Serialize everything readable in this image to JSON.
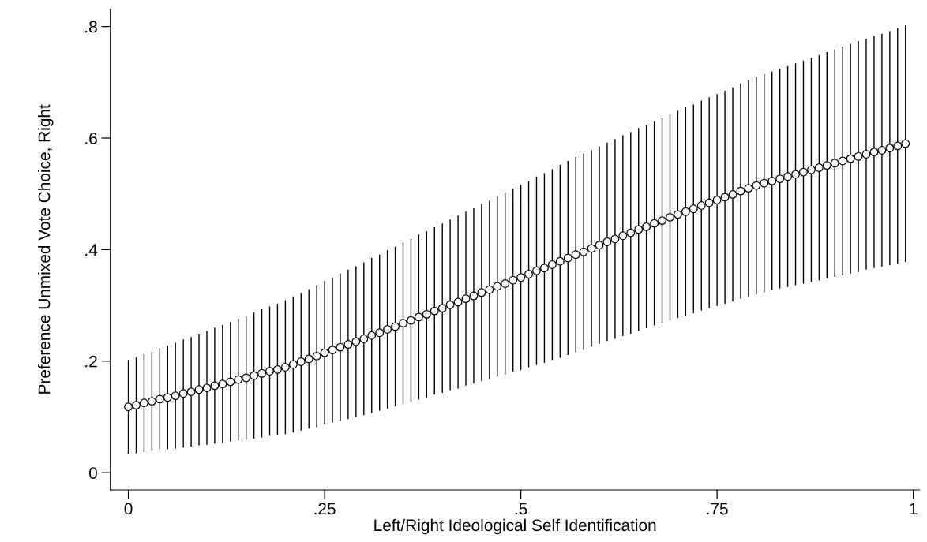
{
  "chart_data": {
    "type": "scatter",
    "xlabel": "Left/Right Ideological Self Identification",
    "ylabel": "Preference Unmixed Vote Choice, Right",
    "marker": "circle",
    "xlim": [
      -0.023,
      1.008
    ],
    "ylim": [
      -0.031,
      0.831
    ],
    "xticks": [
      0,
      {
        "value": 0.25,
        "label": ".25"
      },
      {
        "value": 0.5,
        "label": ".5"
      },
      {
        "value": 0.75,
        "label": ".75"
      },
      1
    ],
    "yticks": [
      0,
      {
        "value": 0.2,
        "label": ".2"
      },
      {
        "value": 0.4,
        "label": ".4"
      },
      {
        "value": 0.6,
        "label": ".6"
      },
      {
        "value": 0.8,
        "label": ".8"
      }
    ],
    "x": [
      0,
      0.01,
      0.02,
      0.03,
      0.04,
      0.05,
      0.06,
      0.07,
      0.08,
      0.09,
      0.1,
      0.11,
      0.12,
      0.13,
      0.14,
      0.15,
      0.16,
      0.17,
      0.18,
      0.19,
      0.2,
      0.21,
      0.22,
      0.23,
      0.24,
      0.25,
      0.26,
      0.27,
      0.28,
      0.29,
      0.3,
      0.31,
      0.32,
      0.33,
      0.34,
      0.35,
      0.36,
      0.37,
      0.38,
      0.39,
      0.4,
      0.41,
      0.42,
      0.43,
      0.44,
      0.45,
      0.46,
      0.47,
      0.48,
      0.49,
      0.5,
      0.51,
      0.52,
      0.53,
      0.54,
      0.55,
      0.56,
      0.57,
      0.58,
      0.59,
      0.6,
      0.61,
      0.62,
      0.63,
      0.64,
      0.65,
      0.66,
      0.67,
      0.68,
      0.69,
      0.7,
      0.71,
      0.72,
      0.73,
      0.74,
      0.75,
      0.76,
      0.77,
      0.78,
      0.79,
      0.8,
      0.81,
      0.82,
      0.83,
      0.84,
      0.85,
      0.86,
      0.87,
      0.88,
      0.89,
      0.9,
      0.91,
      0.92,
      0.93,
      0.94,
      0.95,
      0.96,
      0.97,
      0.98,
      0.99
    ],
    "series": [
      {
        "color": "#000000",
        "values": [
          0.118,
          0.121,
          0.125,
          0.128,
          0.132,
          0.135,
          0.138,
          0.142,
          0.145,
          0.149,
          0.152,
          0.156,
          0.159,
          0.163,
          0.167,
          0.17,
          0.174,
          0.178,
          0.182,
          0.185,
          0.189,
          0.194,
          0.199,
          0.204,
          0.209,
          0.215,
          0.22,
          0.225,
          0.23,
          0.235,
          0.24,
          0.246,
          0.251,
          0.257,
          0.262,
          0.268,
          0.273,
          0.279,
          0.284,
          0.29,
          0.295,
          0.301,
          0.306,
          0.312,
          0.317,
          0.323,
          0.328,
          0.334,
          0.339,
          0.345,
          0.35,
          0.356,
          0.362,
          0.367,
          0.373,
          0.379,
          0.385,
          0.391,
          0.396,
          0.402,
          0.408,
          0.414,
          0.419,
          0.425,
          0.43,
          0.436,
          0.441,
          0.447,
          0.452,
          0.458,
          0.463,
          0.468,
          0.473,
          0.479,
          0.484,
          0.489,
          0.494,
          0.499,
          0.505,
          0.51,
          0.515,
          0.519,
          0.523,
          0.527,
          0.531,
          0.535,
          0.539,
          0.543,
          0.547,
          0.551,
          0.555,
          0.559,
          0.563,
          0.567,
          0.571,
          0.575,
          0.578,
          0.582,
          0.586,
          0.59
        ],
        "errors": [
          0.084,
          0.086,
          0.088,
          0.089,
          0.091,
          0.093,
          0.095,
          0.097,
          0.098,
          0.1,
          0.102,
          0.104,
          0.106,
          0.107,
          0.109,
          0.111,
          0.113,
          0.115,
          0.116,
          0.118,
          0.12,
          0.122,
          0.123,
          0.125,
          0.127,
          0.129,
          0.13,
          0.132,
          0.134,
          0.135,
          0.137,
          0.139,
          0.14,
          0.142,
          0.143,
          0.145,
          0.146,
          0.148,
          0.149,
          0.15,
          0.152,
          0.153,
          0.155,
          0.156,
          0.157,
          0.159,
          0.16,
          0.162,
          0.163,
          0.164,
          0.166,
          0.167,
          0.169,
          0.17,
          0.171,
          0.173,
          0.174,
          0.175,
          0.176,
          0.176,
          0.177,
          0.178,
          0.179,
          0.18,
          0.181,
          0.182,
          0.182,
          0.183,
          0.184,
          0.185,
          0.186,
          0.187,
          0.187,
          0.188,
          0.189,
          0.19,
          0.191,
          0.192,
          0.193,
          0.194,
          0.195,
          0.196,
          0.196,
          0.197,
          0.198,
          0.199,
          0.2,
          0.201,
          0.202,
          0.203,
          0.204,
          0.205,
          0.206,
          0.207,
          0.207,
          0.208,
          0.209,
          0.21,
          0.211,
          0.212
        ]
      }
    ]
  }
}
